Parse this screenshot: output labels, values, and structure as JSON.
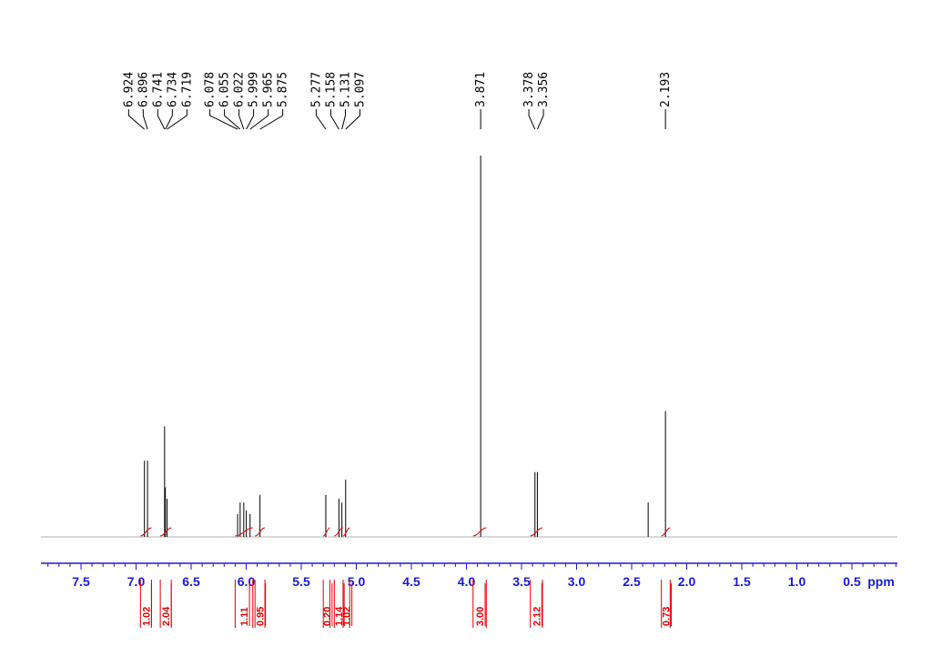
{
  "chart_data": {
    "type": "line",
    "title": "",
    "xlabel": "ppm",
    "ylabel": "",
    "xlim": [
      7.85,
      -0.4
    ],
    "x_reversed": true,
    "grid": false,
    "x_ticks": [
      7.5,
      7.0,
      6.5,
      6.0,
      5.5,
      5.0,
      4.5,
      4.0,
      3.5,
      3.0,
      2.5,
      2.0,
      1.5,
      1.0,
      0.5
    ],
    "x_tick_labels": [
      "7.5",
      "7.0",
      "6.5",
      "6.0",
      "5.5",
      "5.0",
      "4.5",
      "4.0",
      "3.5",
      "3.0",
      "2.5",
      "2.0",
      "1.5",
      "1.0",
      "0.5"
    ],
    "peak_labels": [
      "6.924",
      "6.896",
      "6.741",
      "6.734",
      "6.719",
      "6.078",
      "6.055",
      "6.022",
      "5.999",
      "5.965",
      "5.875",
      "5.277",
      "5.158",
      "5.131",
      "5.097",
      "3.871",
      "3.378",
      "3.356",
      "2.193"
    ],
    "peaks": [
      {
        "ppm": 6.924,
        "height": 0.2
      },
      {
        "ppm": 6.896,
        "height": 0.2
      },
      {
        "ppm": 6.741,
        "height": 0.29
      },
      {
        "ppm": 6.734,
        "height": 0.13
      },
      {
        "ppm": 6.719,
        "height": 0.1
      },
      {
        "ppm": 6.078,
        "height": 0.06
      },
      {
        "ppm": 6.055,
        "height": 0.09
      },
      {
        "ppm": 6.022,
        "height": 0.09
      },
      {
        "ppm": 5.999,
        "height": 0.07
      },
      {
        "ppm": 5.965,
        "height": 0.06
      },
      {
        "ppm": 5.875,
        "height": 0.11
      },
      {
        "ppm": 5.277,
        "height": 0.11
      },
      {
        "ppm": 5.158,
        "height": 0.1
      },
      {
        "ppm": 5.131,
        "height": 0.09
      },
      {
        "ppm": 5.097,
        "height": 0.15
      },
      {
        "ppm": 3.871,
        "height": 1.0
      },
      {
        "ppm": 3.378,
        "height": 0.17
      },
      {
        "ppm": 3.356,
        "height": 0.17
      },
      {
        "ppm": 2.35,
        "height": 0.09
      },
      {
        "ppm": 2.193,
        "height": 0.33
      }
    ],
    "integrals": [
      {
        "from": 6.96,
        "to": 6.86,
        "value": "1.02"
      },
      {
        "from": 6.78,
        "to": 6.68,
        "value": "2.04"
      },
      {
        "from": 6.1,
        "to": 5.94,
        "value": "1.11"
      },
      {
        "from": 5.92,
        "to": 5.83,
        "value": "0.95"
      },
      {
        "from": 5.3,
        "to": 5.24,
        "value": "0.20"
      },
      {
        "from": 5.2,
        "to": 5.12,
        "value": "1.14"
      },
      {
        "from": 5.12,
        "to": 5.06,
        "value": "1.02"
      },
      {
        "from": 3.94,
        "to": 3.82,
        "value": "3.00"
      },
      {
        "from": 3.42,
        "to": 3.31,
        "value": "2.12"
      },
      {
        "from": 2.23,
        "to": 2.15,
        "value": "0.73"
      }
    ],
    "colors": {
      "spectrum": "#000000",
      "axis": "#1a1ad6",
      "integral": "#e00000"
    }
  }
}
